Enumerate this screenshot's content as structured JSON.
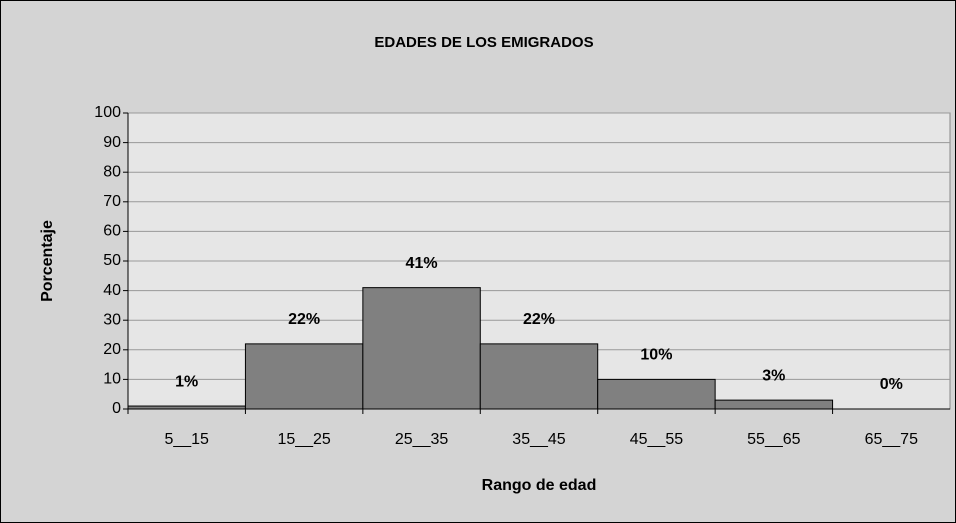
{
  "chart_data": {
    "type": "bar",
    "title": "EDADES DE LOS EMIGRADOS",
    "x_label": "Rango de edad",
    "y_label": "Porcentaje",
    "categories": [
      "5__15",
      "15__25",
      "25__35",
      "35__45",
      "45__55",
      "55__65",
      "65__75"
    ],
    "values": [
      1,
      22,
      41,
      22,
      10,
      3,
      0
    ],
    "value_labels": [
      "1%",
      "22%",
      "41%",
      "22%",
      "10%",
      "3%",
      "0%"
    ],
    "color": "#808080",
    "ylim": [
      0,
      100
    ],
    "yticks": [
      0,
      10,
      20,
      30,
      40,
      50,
      60,
      70,
      80,
      90,
      100
    ],
    "grid": true
  }
}
